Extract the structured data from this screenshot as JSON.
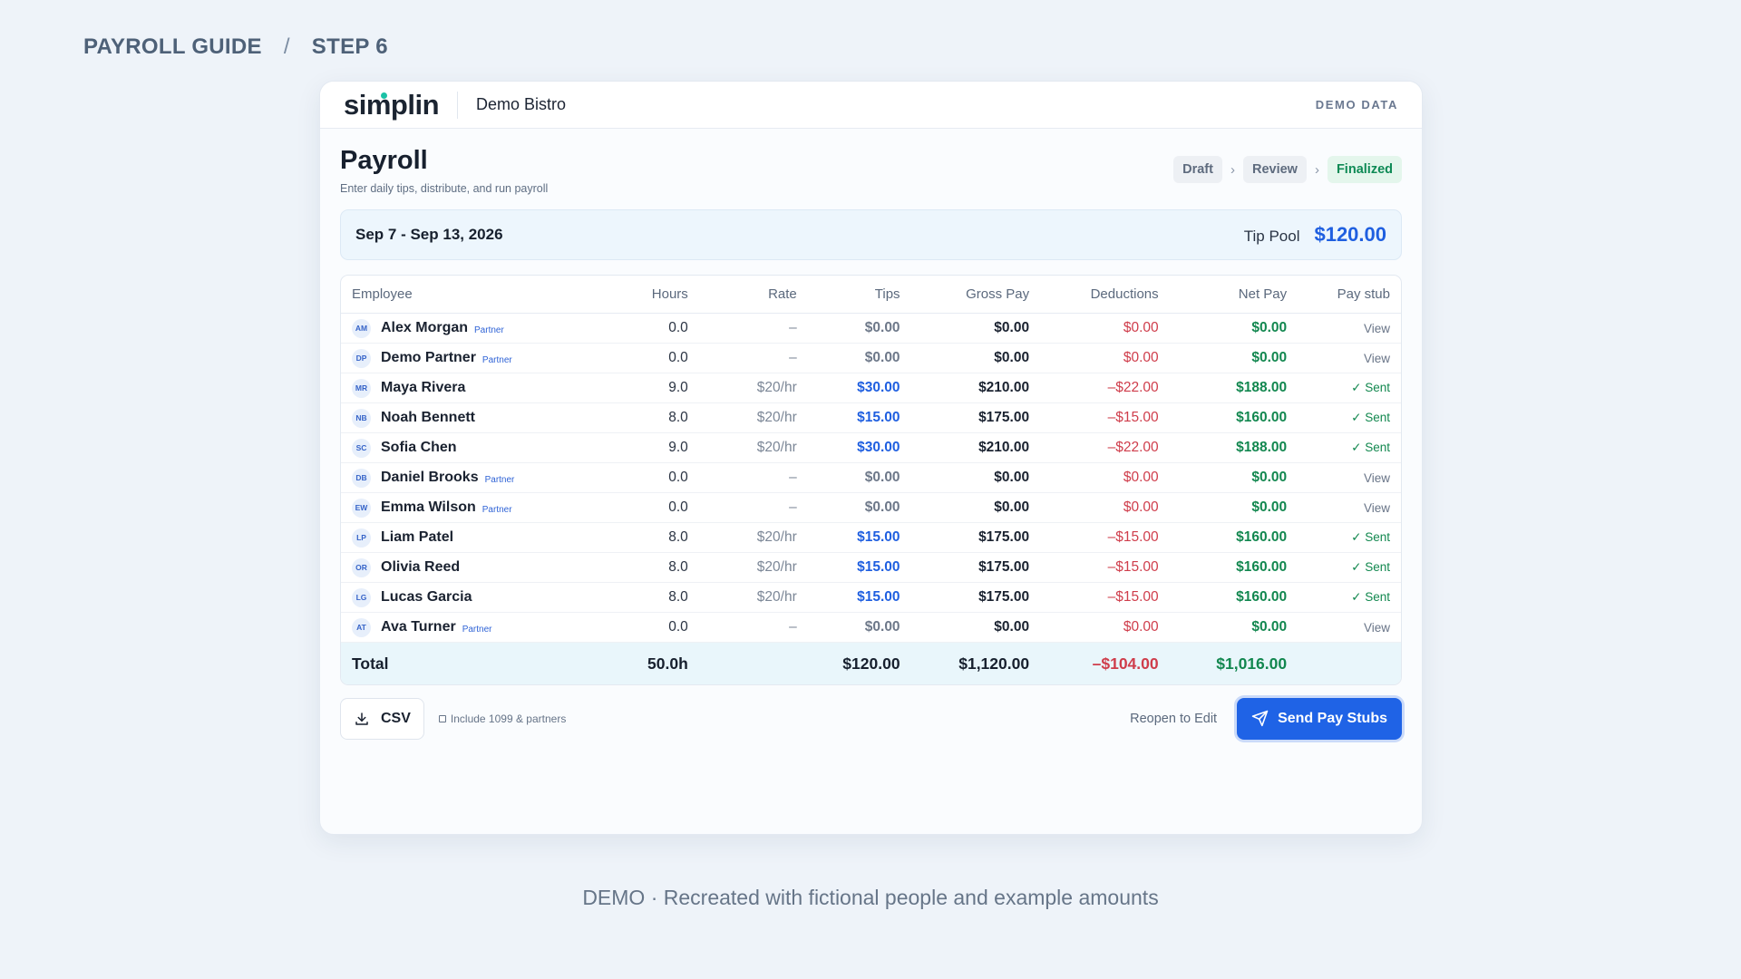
{
  "guide": {
    "title": "PAYROLL GUIDE",
    "separator": "/",
    "step": "STEP 6"
  },
  "topbar": {
    "logo": "simplin",
    "restaurant": "Demo Bistro",
    "badge": "DEMO DATA"
  },
  "page": {
    "title": "Payroll",
    "subtitle": "Enter daily tips, distribute, and run payroll"
  },
  "status_steps": [
    {
      "label": "Draft",
      "active": false
    },
    {
      "label": "Review",
      "active": false
    },
    {
      "label": "Finalized",
      "active": true
    }
  ],
  "period": {
    "range": "Sep 7 - Sep 13, 2026",
    "tip_pool_label": "Tip Pool",
    "tip_pool_value": "$120.00"
  },
  "table": {
    "columns": [
      "Employee",
      "Hours",
      "Rate",
      "Tips",
      "Gross Pay",
      "Deductions",
      "Net Pay",
      "Pay stub"
    ],
    "rows": [
      {
        "initials": "AM",
        "name": "Alex Morgan",
        "partner": "Partner",
        "hours": "0.0",
        "rate": "–",
        "tips": "$0.00",
        "gross": "$0.00",
        "deductions": "$0.00",
        "net": "$0.00",
        "stub": "View",
        "stub_type": "view",
        "tips_type": "zero"
      },
      {
        "initials": "DP",
        "name": "Demo Partner",
        "partner": "Partner",
        "hours": "0.0",
        "rate": "–",
        "tips": "$0.00",
        "gross": "$0.00",
        "deductions": "$0.00",
        "net": "$0.00",
        "stub": "View",
        "stub_type": "view",
        "tips_type": "zero"
      },
      {
        "initials": "MR",
        "name": "Maya Rivera",
        "partner": "",
        "hours": "9.0",
        "rate": "$20/hr",
        "tips": "$30.00",
        "gross": "$210.00",
        "deductions": "–$22.00",
        "net": "$188.00",
        "stub": "✓ Sent",
        "stub_type": "sent",
        "tips_type": "pos"
      },
      {
        "initials": "NB",
        "name": "Noah Bennett",
        "partner": "",
        "hours": "8.0",
        "rate": "$20/hr",
        "tips": "$15.00",
        "gross": "$175.00",
        "deductions": "–$15.00",
        "net": "$160.00",
        "stub": "✓ Sent",
        "stub_type": "sent",
        "tips_type": "pos"
      },
      {
        "initials": "SC",
        "name": "Sofia Chen",
        "partner": "",
        "hours": "9.0",
        "rate": "$20/hr",
        "tips": "$30.00",
        "gross": "$210.00",
        "deductions": "–$22.00",
        "net": "$188.00",
        "stub": "✓ Sent",
        "stub_type": "sent",
        "tips_type": "pos"
      },
      {
        "initials": "DB",
        "name": "Daniel Brooks",
        "partner": "Partner",
        "hours": "0.0",
        "rate": "–",
        "tips": "$0.00",
        "gross": "$0.00",
        "deductions": "$0.00",
        "net": "$0.00",
        "stub": "View",
        "stub_type": "view",
        "tips_type": "zero"
      },
      {
        "initials": "EW",
        "name": "Emma Wilson",
        "partner": "Partner",
        "hours": "0.0",
        "rate": "–",
        "tips": "$0.00",
        "gross": "$0.00",
        "deductions": "$0.00",
        "net": "$0.00",
        "stub": "View",
        "stub_type": "view",
        "tips_type": "zero"
      },
      {
        "initials": "LP",
        "name": "Liam Patel",
        "partner": "",
        "hours": "8.0",
        "rate": "$20/hr",
        "tips": "$15.00",
        "gross": "$175.00",
        "deductions": "–$15.00",
        "net": "$160.00",
        "stub": "✓ Sent",
        "stub_type": "sent",
        "tips_type": "pos"
      },
      {
        "initials": "OR",
        "name": "Olivia Reed",
        "partner": "",
        "hours": "8.0",
        "rate": "$20/hr",
        "tips": "$15.00",
        "gross": "$175.00",
        "deductions": "–$15.00",
        "net": "$160.00",
        "stub": "✓ Sent",
        "stub_type": "sent",
        "tips_type": "pos"
      },
      {
        "initials": "LG",
        "name": "Lucas Garcia",
        "partner": "",
        "hours": "8.0",
        "rate": "$20/hr",
        "tips": "$15.00",
        "gross": "$175.00",
        "deductions": "–$15.00",
        "net": "$160.00",
        "stub": "✓ Sent",
        "stub_type": "sent",
        "tips_type": "pos"
      },
      {
        "initials": "AT",
        "name": "Ava Turner",
        "partner": "Partner",
        "hours": "0.0",
        "rate": "–",
        "tips": "$0.00",
        "gross": "$0.00",
        "deductions": "$0.00",
        "net": "$0.00",
        "stub": "View",
        "stub_type": "view",
        "tips_type": "zero"
      }
    ],
    "total": {
      "label": "Total",
      "hours": "50.0h",
      "tips": "$120.00",
      "gross": "$1,120.00",
      "deductions": "–$104.00",
      "net": "$1,016.00"
    }
  },
  "actions": {
    "csv_label": "CSV",
    "csv_icon": "download-icon",
    "include_label": "Include 1099 & partners",
    "include_checked": false,
    "reopen_label": "Reopen to Edit",
    "send_label": "Send Pay Stubs",
    "send_icon": "send-icon"
  },
  "footnote": "DEMO · Recreated with fictional people and example amounts",
  "colors": {
    "accent_blue": "#1f63e6",
    "positive_green": "#12874f",
    "negative_red": "#cf3d4b",
    "brand_dot": "#1bc1a6"
  }
}
